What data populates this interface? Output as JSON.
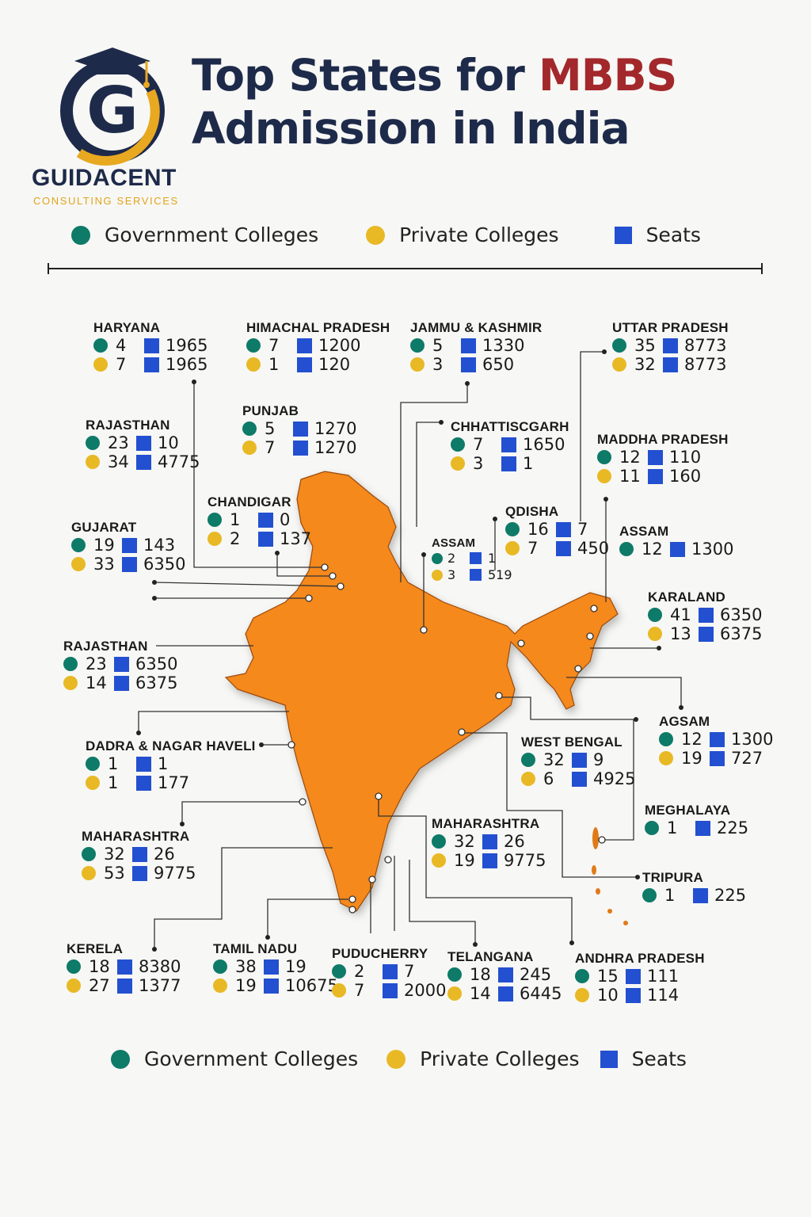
{
  "brand": {
    "name": "GUIDACENT",
    "tagline": "CONSULTING SERVICES"
  },
  "title": {
    "part1": "Top States for ",
    "highlight": "MBBS",
    "part2": "Admission in India"
  },
  "colors": {
    "government": "#0e7a68",
    "private": "#e8b925",
    "seats": "#2350d0",
    "map": "#f5891c",
    "title_dark": "#1e2a4a",
    "title_red": "#a3282b"
  },
  "legend": {
    "government": "Government Colleges",
    "private": "Private Colleges",
    "seats": "Seats"
  },
  "states": [
    {
      "name": "HARYANA",
      "gov": [
        "4",
        "1965"
      ],
      "pvt": [
        "7",
        "1965"
      ]
    },
    {
      "name": "HIMACHAL PRADESH",
      "gov": [
        "7",
        "1200"
      ],
      "pvt": [
        "1",
        "120"
      ]
    },
    {
      "name": "JAMMU & KASHMIR",
      "gov": [
        "5",
        "1330"
      ],
      "pvt": [
        "3",
        "650"
      ]
    },
    {
      "name": "UTTAR PRADESH",
      "gov": [
        "35",
        "8773"
      ],
      "pvt": [
        "32",
        "8773"
      ]
    },
    {
      "name": "RAJASTHAN",
      "gov": [
        "23",
        "10"
      ],
      "pvt": [
        "34",
        "4775"
      ]
    },
    {
      "name": "PUNJAB",
      "gov": [
        "5",
        "1270"
      ],
      "pvt": [
        "7",
        "1270"
      ]
    },
    {
      "name": "CHHATTISCGARH",
      "gov": [
        "7",
        "1650"
      ],
      "pvt": [
        "3",
        "1"
      ]
    },
    {
      "name": "MADDHA PRADESH",
      "gov": [
        "12",
        "110"
      ],
      "pvt": [
        "11",
        "160"
      ]
    },
    {
      "name": "CHANDIGAR",
      "gov": [
        "1",
        "0"
      ],
      "pvt": [
        "2",
        "137"
      ]
    },
    {
      "name": "QDISHA",
      "gov": [
        "16",
        "7"
      ],
      "pvt": [
        "7",
        "450"
      ]
    },
    {
      "name": "GUJARAT",
      "gov": [
        "19",
        "143"
      ],
      "pvt": [
        "33",
        "6350"
      ]
    },
    {
      "name": "ASSAM",
      "gov": [
        "2",
        "1"
      ],
      "pvt": [
        "3",
        "519"
      ]
    },
    {
      "name": "ASSAM",
      "gov": [
        "12",
        "1300"
      ]
    },
    {
      "name": "KARALAND",
      "gov": [
        "41",
        "6350"
      ],
      "pvt": [
        "13",
        "6375"
      ]
    },
    {
      "name": "RAJASTHAN",
      "gov": [
        "23",
        "6350"
      ],
      "pvt": [
        "14",
        "6375"
      ]
    },
    {
      "name": "DADRA & NAGAR HAVELI",
      "gov": [
        "1",
        "1"
      ],
      "pvt": [
        "1",
        "177"
      ]
    },
    {
      "name": "AGSAM",
      "gov": [
        "12",
        "1300"
      ],
      "pvt": [
        "19",
        "727"
      ]
    },
    {
      "name": "WEST BENGAL",
      "gov": [
        "32",
        "9"
      ],
      "pvt": [
        "6",
        "4925"
      ]
    },
    {
      "name": "MEGHALAYA",
      "gov": [
        "1",
        "225"
      ]
    },
    {
      "name": "MAHARASHTRA",
      "gov": [
        "32",
        "26"
      ],
      "pvt": [
        "53",
        "9775"
      ]
    },
    {
      "name": "MAHARASHTRA",
      "gov": [
        "32",
        "26"
      ],
      "pvt": [
        "19",
        "9775"
      ]
    },
    {
      "name": "TRIPURA",
      "gov": [
        "1",
        "225"
      ]
    },
    {
      "name": "KERELA",
      "gov": [
        "18",
        "8380"
      ],
      "pvt": [
        "27",
        "1377"
      ]
    },
    {
      "name": "TAMIL NADU",
      "gov": [
        "38",
        "19"
      ],
      "pvt": [
        "19",
        "10675"
      ]
    },
    {
      "name": "PUDUCHERRY",
      "gov": [
        "2",
        "7"
      ],
      "pvt": [
        "7",
        "2000"
      ]
    },
    {
      "name": "TELANGANA",
      "gov": [
        "18",
        "245"
      ],
      "pvt": [
        "14",
        "6445"
      ]
    },
    {
      "name": "ANDHRA PRADESH",
      "gov": [
        "15",
        "111"
      ],
      "pvt": [
        "10",
        "114"
      ]
    }
  ]
}
